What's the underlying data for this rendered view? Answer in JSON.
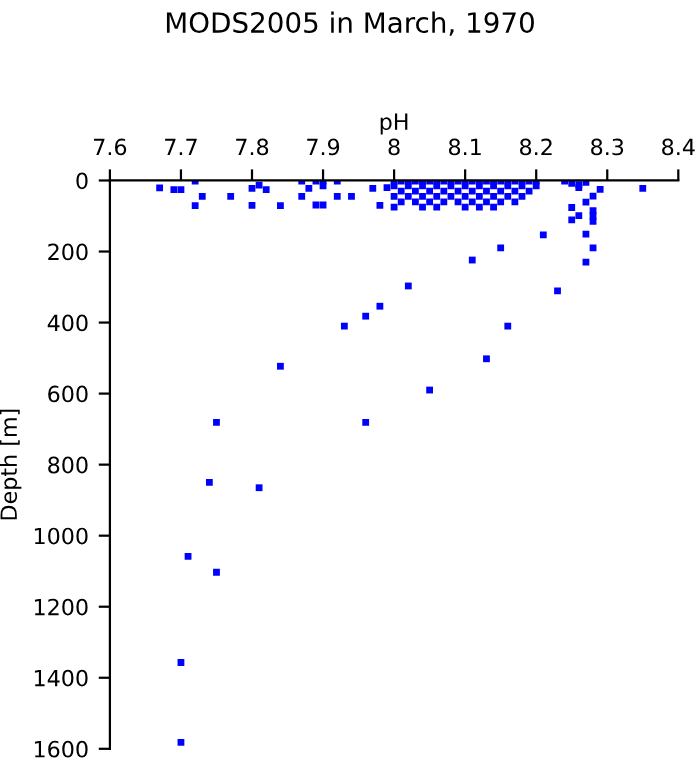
{
  "chart_data": {
    "type": "scatter",
    "title": "MODS2005 in March, 1970",
    "xlabel": "pH",
    "ylabel": "Depth [m]",
    "xlim": [
      7.6,
      8.4
    ],
    "xticks": [
      {
        "value": 7.6,
        "label": "7.6"
      },
      {
        "value": 7.7,
        "label": "7.7"
      },
      {
        "value": 7.8,
        "label": "7.8"
      },
      {
        "value": 7.9,
        "label": "7.9"
      },
      {
        "value": 8.0,
        "label": "8"
      },
      {
        "value": 8.1,
        "label": "8.1"
      },
      {
        "value": 8.2,
        "label": "8.2"
      },
      {
        "value": 8.3,
        "label": "8.3"
      },
      {
        "value": 8.4,
        "label": "8.4"
      }
    ],
    "ylim": [
      1600,
      0
    ],
    "yticks": [
      0,
      200,
      400,
      600,
      800,
      1000,
      1200,
      1400,
      1600
    ],
    "marker": "square",
    "grid": false,
    "series": [
      {
        "color": "#0000ff",
        "x": [
          8.05,
          7.75,
          7.96,
          7.74,
          7.81,
          7.71,
          7.75,
          7.7,
          7.7,
          7.84,
          7.93,
          7.96,
          7.98,
          8.02,
          8.11,
          8.15,
          8.16,
          8.13,
          8.23,
          8.21,
          8.27,
          8.28,
          8.27,
          8.28,
          8.28,
          8.28,
          8.25,
          8.27,
          8.26,
          8.25,
          8.28,
          8.29,
          8.35,
          7.67,
          7.69,
          7.7,
          7.72,
          7.72,
          7.73,
          7.77,
          7.8,
          7.8,
          7.81,
          7.82,
          7.84,
          7.87,
          7.87,
          7.88,
          7.89,
          7.9,
          7.9,
          7.89,
          7.9,
          7.92,
          7.92,
          7.94,
          7.97,
          7.98,
          7.99,
          8.0,
          8.01,
          8.02,
          8.03,
          8.04,
          8.05,
          8.06,
          8.07,
          8.08,
          8.09,
          8.1,
          8.11,
          8.12,
          8.13,
          8.14,
          8.15,
          8.16,
          8.17,
          8.18,
          8.19,
          8.2,
          8.0,
          8.02,
          8.04,
          8.06,
          8.08,
          8.1,
          8.12,
          8.14,
          8.16,
          8.18,
          8.2,
          8.01,
          8.03,
          8.05,
          8.07,
          8.09,
          8.11,
          8.13,
          8.15,
          8.17,
          8.19,
          8.0,
          8.02,
          8.04,
          8.06,
          8.08,
          8.1,
          8.12,
          8.14,
          8.16,
          8.18,
          8.01,
          8.03,
          8.05,
          8.07,
          8.09,
          8.11,
          8.13,
          8.15,
          8.17,
          8.0,
          8.04,
          8.06,
          8.1,
          8.12,
          8.14,
          8.24,
          8.25,
          8.26,
          8.27,
          8.26
        ],
        "values": [
          590,
          681,
          681,
          850,
          865,
          1058,
          1103,
          1357,
          1582,
          523,
          410,
          382,
          354,
          297,
          224,
          190,
          410,
          502,
          311,
          153,
          230,
          190,
          151,
          85,
          100,
          115,
          111,
          61,
          99,
          76,
          44,
          25,
          22,
          21,
          26,
          26,
          2,
          71,
          45,
          45,
          22,
          70,
          13,
          26,
          71,
          2,
          45,
          22,
          2,
          2,
          15,
          69,
          69,
          2,
          45,
          45,
          22,
          70,
          20,
          2,
          2,
          2,
          2,
          2,
          2,
          2,
          2,
          2,
          2,
          2,
          2,
          2,
          2,
          2,
          2,
          2,
          2,
          2,
          2,
          2,
          15,
          15,
          15,
          15,
          15,
          15,
          15,
          15,
          15,
          15,
          15,
          30,
          30,
          30,
          30,
          30,
          30,
          30,
          30,
          30,
          30,
          45,
          45,
          45,
          45,
          45,
          45,
          45,
          45,
          45,
          45,
          60,
          60,
          60,
          60,
          60,
          60,
          60,
          60,
          60,
          75,
          75,
          75,
          75,
          75,
          75,
          2,
          8,
          12,
          5,
          20
        ]
      }
    ]
  }
}
